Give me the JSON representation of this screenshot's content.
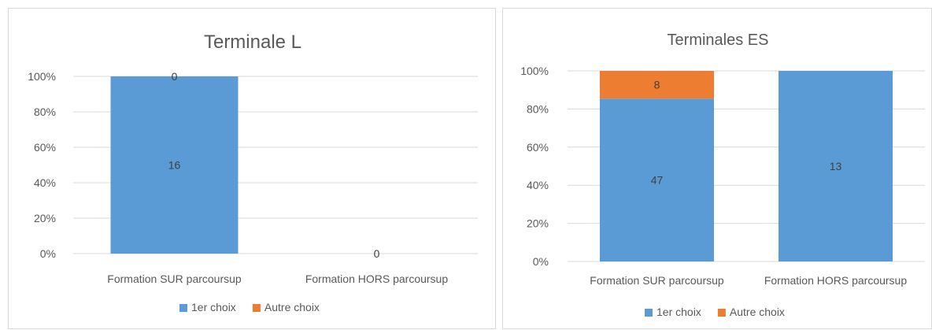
{
  "chart_data": [
    {
      "type": "bar",
      "stacked": "percent",
      "title": "Terminale L",
      "categories": [
        "Formation SUR parcoursup",
        "Formation HORS parcoursup"
      ],
      "series": [
        {
          "name": "1er choix",
          "values": [
            16,
            0
          ],
          "data_labels": [
            "16",
            ""
          ],
          "color": "#5b9bd5"
        },
        {
          "name": "Autre choix",
          "values": [
            0,
            0
          ],
          "data_labels": [
            "0",
            "0"
          ],
          "color": "#ed7d31"
        }
      ],
      "y_ticks": [
        "0%",
        "20%",
        "40%",
        "60%",
        "80%",
        "100%"
      ],
      "ylim": [
        0,
        100
      ],
      "grid": true,
      "legend": "bottom"
    },
    {
      "type": "bar",
      "stacked": "percent",
      "title": "Terminales ES",
      "categories": [
        "Formation SUR parcoursup",
        "Formation HORS parcoursup"
      ],
      "series": [
        {
          "name": "1er choix",
          "values": [
            47,
            13
          ],
          "data_labels": [
            "47",
            "13"
          ],
          "color": "#5b9bd5"
        },
        {
          "name": "Autre choix",
          "values": [
            8,
            0
          ],
          "data_labels": [
            "8",
            ""
          ],
          "color": "#ed7d31"
        }
      ],
      "y_ticks": [
        "0%",
        "20%",
        "40%",
        "60%",
        "80%",
        "100%"
      ],
      "ylim": [
        0,
        100
      ],
      "grid": true,
      "legend": "bottom"
    }
  ]
}
